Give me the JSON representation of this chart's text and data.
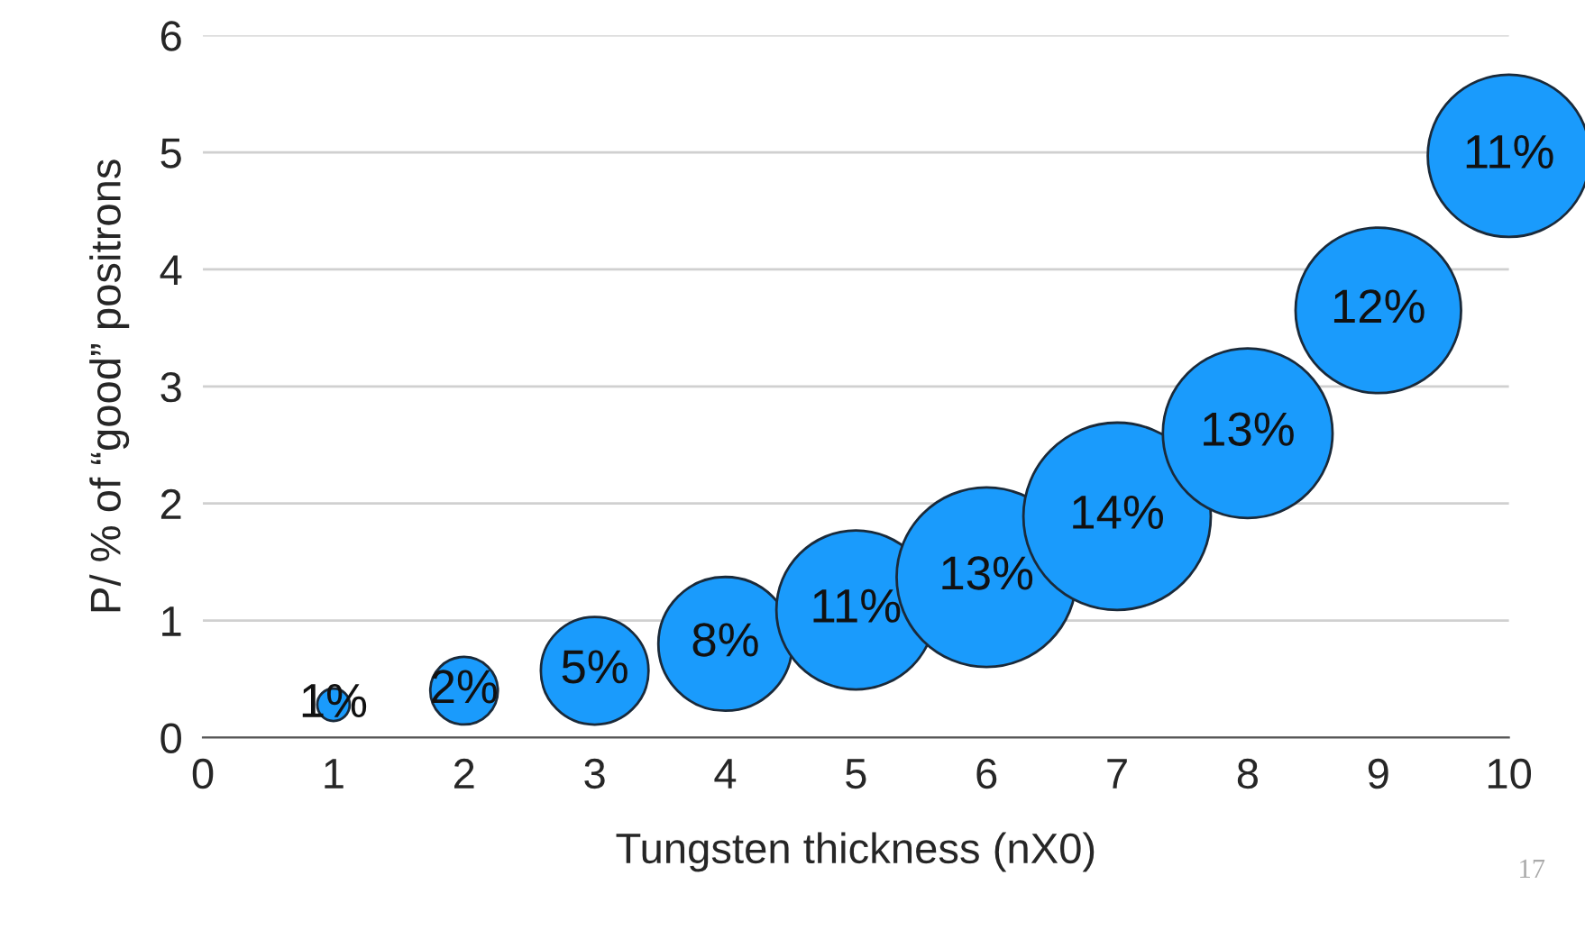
{
  "chart_data": {
    "type": "bubble",
    "xlabel": "Tungsten thickness (nX0)",
    "ylabel": "P/ % of “good” positrons",
    "x": [
      1,
      2,
      3,
      4,
      5,
      6,
      7,
      8,
      9,
      10
    ],
    "series": [
      {
        "color": "#1a9bfc",
        "values": [
          0.28,
          0.4,
          0.57,
          0.8,
          1.09,
          1.37,
          1.89,
          2.6,
          3.65,
          4.97
        ],
        "sizes": [
          0.03,
          0.13,
          0.33,
          0.51,
          0.72,
          0.92,
          1,
          0.82,
          0.78,
          0.75
        ]
      }
    ],
    "xlim": [
      0,
      10
    ],
    "xticks": [
      0,
      1,
      2,
      3,
      4,
      5,
      6,
      7,
      8,
      9,
      10
    ],
    "ylim": [
      0,
      6
    ],
    "yticks": [
      0,
      1,
      2,
      3,
      4,
      5,
      6
    ],
    "grid": "y",
    "annotations": [
      {
        "text": "1%",
        "x": 1,
        "y": 0.28
      },
      {
        "text": "2%",
        "x": 2,
        "y": 0.4
      },
      {
        "text": "5%",
        "x": 3,
        "y": 0.57
      },
      {
        "text": "8%",
        "x": 4,
        "y": 0.8
      },
      {
        "text": "11%",
        "x": 5,
        "y": 1.09
      },
      {
        "text": "13%",
        "x": 6,
        "y": 1.37
      },
      {
        "text": "14%",
        "x": 7,
        "y": 1.89
      },
      {
        "text": "13%",
        "x": 8,
        "y": 2.6
      },
      {
        "text": "12%",
        "x": 9,
        "y": 3.65
      },
      {
        "text": "11%",
        "x": 10,
        "y": 4.97
      },
      "17"
    ]
  }
}
